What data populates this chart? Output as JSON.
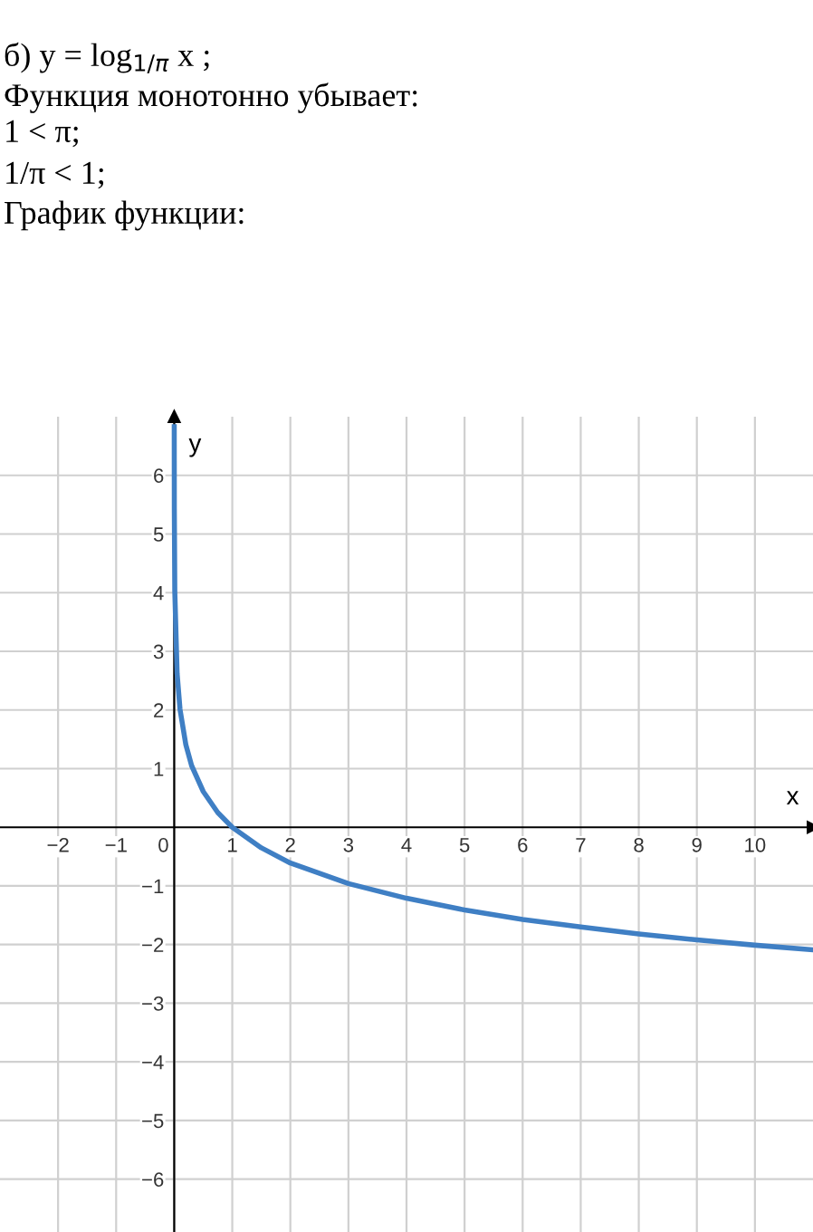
{
  "chart_data": {
    "type": "line",
    "annotations": [
      "б) y = log$_{1/π}$ x ;",
      "Функция монотонно убывает:",
      "1 < π;",
      "1/π < 1;",
      "График функции:"
    ],
    "xlabel": "x",
    "ylabel": "y",
    "series": [
      {
        "color": "#3f7fc4",
        "x": [
          0.0004,
          0.002,
          0.01,
          0.05,
          0.1,
          0.2,
          0.3,
          0.5,
          0.75,
          1,
          1.5,
          2,
          3,
          4,
          5,
          6,
          7,
          8,
          9,
          10,
          11
        ],
        "values": [
          6.83,
          5.43,
          4.02,
          2.62,
          2.01,
          1.41,
          1.05,
          0.61,
          0.25,
          0,
          -0.35,
          -0.61,
          -0.96,
          -1.21,
          -1.41,
          -1.57,
          -1.7,
          -1.82,
          -1.92,
          -2.01,
          -2.09
        ]
      }
    ],
    "xlim": [
      -3,
      11
    ],
    "ylim": [
      -6.9,
      7.0
    ],
    "xticks": [
      -2,
      -1,
      0,
      1,
      2,
      3,
      4,
      5,
      6,
      7,
      8,
      9,
      10
    ],
    "yticks": [
      -6,
      -5,
      -4,
      -3,
      -2,
      -1,
      1,
      2,
      3,
      4,
      5,
      6
    ],
    "grid": true,
    "marker": "none",
    "line_style": "solid"
  }
}
